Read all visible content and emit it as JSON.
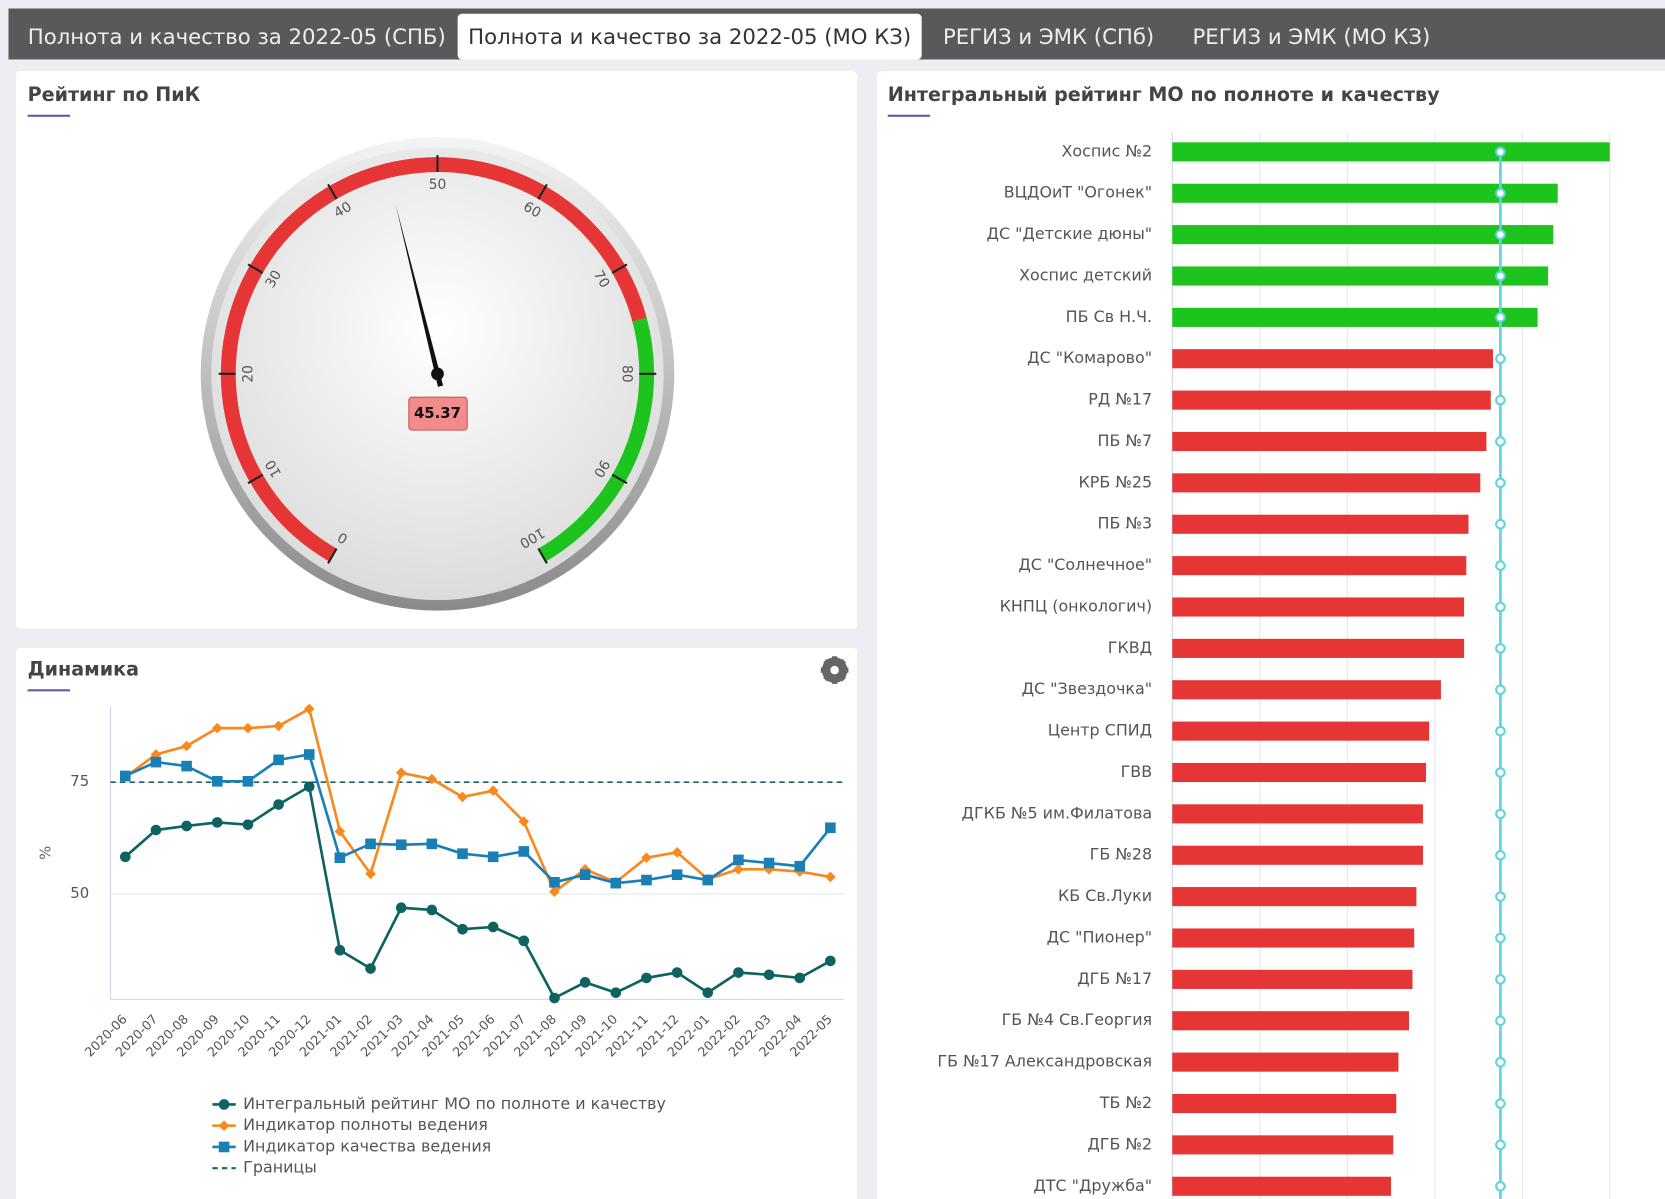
{
  "tabs": [
    "Полнота и качество за 2022-05 (СПБ)",
    "Полнота и качество за 2022-05 (МО КЗ)",
    "РЕГИЗ и ЭМК (СПб)",
    "РЕГИЗ и ЭМК (МО КЗ)"
  ],
  "active_tab": 1,
  "chart_data": [
    {
      "type": "gauge",
      "title": "Рейтинг по ПиК",
      "value": 45.37,
      "value_label": "45.37",
      "ylim": [
        0,
        100
      ],
      "yticks": [
        0,
        10,
        20,
        30,
        40,
        50,
        60,
        70,
        80,
        90,
        100
      ],
      "bands": [
        {
          "from": 0,
          "to": 75,
          "color": "#e53535"
        },
        {
          "from": 75,
          "to": 100,
          "color": "#1ec41e"
        }
      ]
    },
    {
      "type": "line",
      "title": "Динамика",
      "y_label": "%",
      "categories": [
        "2020-06",
        "2020-07",
        "2020-08",
        "2020-09",
        "2020-10",
        "2020-11",
        "2020-12",
        "2021-01",
        "2021-02",
        "2021-03",
        "2021-04",
        "2021-05",
        "2021-06",
        "2021-07",
        "2021-08",
        "2021-09",
        "2021-10",
        "2021-11",
        "2021-12",
        "2022-01",
        "2022-02",
        "2022-03",
        "2022-04",
        "2022-05"
      ],
      "ylim": [
        26.4,
        92
      ],
      "yticks": [
        50,
        75
      ],
      "series": [
        {
          "name": "Интегральный рейтинг МО по полноте и качеству",
          "color": "#0e6360",
          "marker": "circle",
          "values": [
            58.3,
            64.3,
            65.2,
            66.0,
            65.5,
            70.0,
            74.0,
            37.4,
            33.3,
            46.9,
            46.4,
            42.1,
            42.6,
            39.5,
            26.7,
            30.2,
            27.9,
            31.2,
            32.4,
            27.9,
            32.4,
            31.9,
            31.2,
            35.0
          ]
        },
        {
          "name": "Индикатор полноты ведения",
          "color": "#f7891f",
          "marker": "diamond",
          "values": [
            76.2,
            81.2,
            83.1,
            87.1,
            87.1,
            87.6,
            91.4,
            64.0,
            54.5,
            77.1,
            75.7,
            71.7,
            73.1,
            66.2,
            50.5,
            55.5,
            52.6,
            58.1,
            59.3,
            53.3,
            55.5,
            55.5,
            55.0,
            53.8
          ]
        },
        {
          "name": "Индикатор качества ведения",
          "color": "#1a7fb5",
          "marker": "square",
          "values": [
            76.4,
            79.5,
            78.6,
            75.2,
            75.2,
            80.0,
            81.2,
            58.1,
            61.2,
            61.0,
            61.2,
            59.0,
            58.3,
            59.5,
            52.6,
            54.3,
            52.4,
            53.1,
            54.3,
            53.1,
            57.6,
            56.9,
            56.2,
            64.8
          ]
        }
      ],
      "threshold": {
        "name": "Границы",
        "value": 75,
        "color": "#1f5f6b"
      }
    },
    {
      "type": "hbar",
      "title": "Интегральный рейтинг МО по полноте и качеству",
      "categories": [
        "Хоспис №2",
        "ВЦДОиТ \"Огонек\"",
        "ДС \"Детские дюны\"",
        "Хоспис детский",
        "ПБ Св Н.Ч.",
        "ДС \"Комарово\"",
        "РД №17",
        "ПБ №7",
        "КРБ №25",
        "ПБ №3",
        "ДС \"Солнечное\"",
        "КНПЦ (онкологич)",
        "ГКВД",
        "ДС \"Звездочка\"",
        "Центр СПИД",
        "ГВВ",
        "ДГКБ №5 им.Филатова",
        "ГБ №28",
        "КБ Св.Луки",
        "ДС \"Пионер\"",
        "ДГБ №17",
        "ГБ №4 Св.Георгия",
        "ГБ №17 Александровская",
        "ТБ №2",
        "ДГБ №2",
        "ДТС \"Дружба\""
      ],
      "values": [
        100,
        88.1,
        87.1,
        85.9,
        83.5,
        73.3,
        72.8,
        71.8,
        70.4,
        67.7,
        67.2,
        66.7,
        66.7,
        61.4,
        58.7,
        58.0,
        57.3,
        57.3,
        55.8,
        55.3,
        54.9,
        54.1,
        51.7,
        51.2,
        50.5,
        50.0
      ],
      "xlim": [
        0,
        100
      ],
      "xgrid": [
        0,
        20,
        40,
        60,
        80,
        100
      ],
      "above_color": "#1ec41e",
      "below_color": "#e53535",
      "threshold": {
        "value": 75,
        "color": "#5fd3e0"
      }
    }
  ]
}
